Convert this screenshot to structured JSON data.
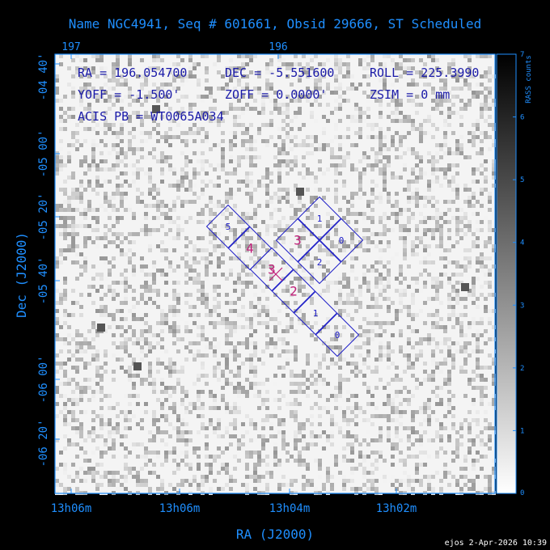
{
  "title": "Name NGC4941, Seq # 601661, Obsid 29666, ST Scheduled",
  "top_axis": {
    "ticks": [
      "197",
      "196"
    ]
  },
  "info": {
    "ra": "RA = 196.054700",
    "dec": "DEC = -5.551600",
    "roll": "ROLL = 225.3990",
    "yoff": "YOFF = -1.500'",
    "zoff": "ZOFF = 0.0000'",
    "zsim": "ZSIM = 0 mm",
    "acis": "ACIS PB = WT0065A034"
  },
  "colorbar": {
    "label": "RASS counts",
    "ticks": [
      "0",
      "1",
      "2",
      "3",
      "4",
      "5",
      "6",
      "7"
    ]
  },
  "footer": "ejos 2-Apr-2026 10:39",
  "chart_data": {
    "type": "heatmap",
    "title": "Name NGC4941, Seq # 601661, Obsid 29666, ST Scheduled",
    "xlabel": "RA (J2000)",
    "ylabel": "Dec (J2000)",
    "x_ticks": [
      "13h06m",
      "13h06m",
      "13h04m",
      "13h02m"
    ],
    "x_top_ticks": [
      "197",
      "196"
    ],
    "y_ticks": [
      "-04 40'",
      "-05 00'",
      "-05 20'",
      "-05 40'",
      "-06 00'",
      "-06 20'"
    ],
    "colorbar_range": [
      0,
      7
    ],
    "colorbar_label": "RASS counts",
    "pointing": {
      "ra": 196.0547,
      "dec": -5.5516,
      "roll": 225.399
    },
    "acis_chips": [
      {
        "label": "5",
        "color": "#2020c8"
      },
      {
        "label": "4",
        "color": "#c0207a"
      },
      {
        "label": "3",
        "color": "#c0207a"
      },
      {
        "label": "2",
        "color": "#c0207a"
      },
      {
        "label": "1",
        "color": "#2020c8"
      },
      {
        "label": "0",
        "color": "#2020c8"
      }
    ],
    "acis_i_chips": [
      {
        "label": "1",
        "color": "#2020c8"
      },
      {
        "label": "3",
        "color": "#c0207a"
      },
      {
        "label": "0",
        "color": "#2020c8"
      },
      {
        "label": "2",
        "color": "#2020c8"
      }
    ]
  }
}
